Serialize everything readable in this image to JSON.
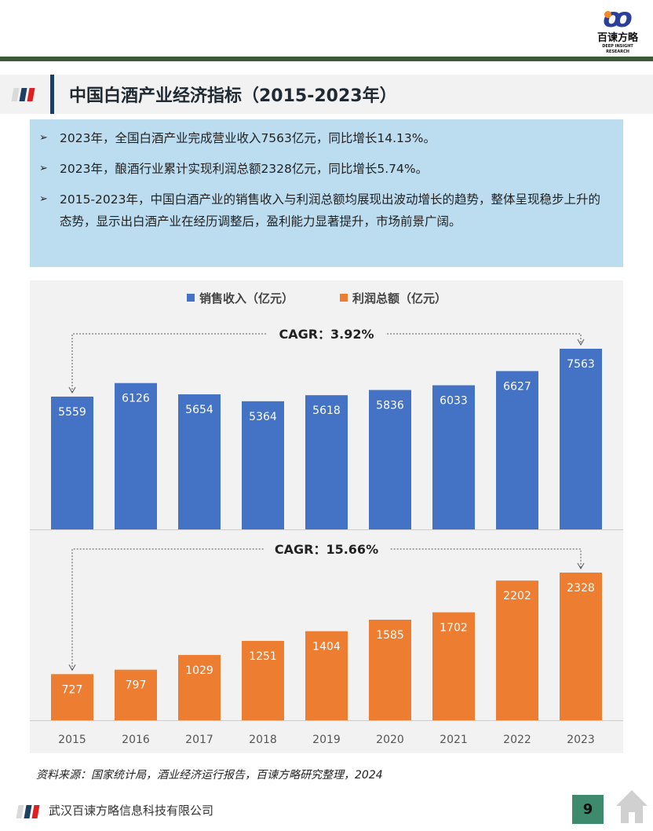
{
  "logo": {
    "cn": "百谏方略",
    "en": "DEEP INSIGHT RESEARCH"
  },
  "title": "中国白酒产业经济指标（2015-2023年）",
  "bullets": [
    "2023年，全国白酒产业完成营业收入7563亿元，同比增长14.13%。",
    "2023年，酿酒行业累计实现利润总额2328亿元，同比增长5.74%。",
    "2015-2023年，中国白酒产业的销售收入与利润总额均展现出波动增长的趋势，整体呈现稳步上升的态势，显示出白酒产业在经历调整后，盈利能力显著提升，市场前景广阔。"
  ],
  "chart_data": {
    "type": "bar",
    "categories": [
      "2015",
      "2016",
      "2017",
      "2018",
      "2019",
      "2020",
      "2021",
      "2022",
      "2023"
    ],
    "series": [
      {
        "name": "销售收入（亿元）",
        "color": "#4472c4",
        "values": [
          5559,
          6126,
          5654,
          5364,
          5618,
          5836,
          6033,
          6627,
          7563
        ],
        "annotation": "CAGR：3.92%"
      },
      {
        "name": "利润总额（亿元）",
        "color": "#ed7d31",
        "values": [
          727,
          797,
          1029,
          1251,
          1404,
          1585,
          1702,
          2202,
          2328
        ],
        "annotation": "CAGR：15.66%"
      }
    ],
    "legend": "top",
    "grid": false
  },
  "source": "资料来源：国家统计局，酒业经济运行报告，百谏方略研究整理，2024",
  "footer": {
    "company": "武汉百谏方略信息科技有限公司",
    "page": "9"
  }
}
